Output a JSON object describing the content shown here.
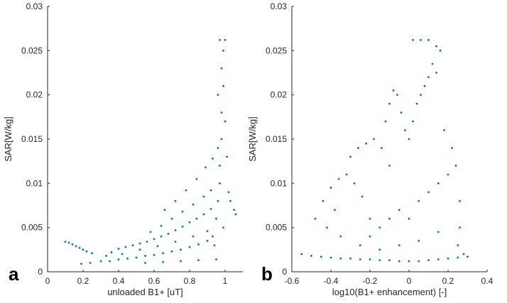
{
  "chart_data": [
    {
      "type": "scatter",
      "panel_letter": "a",
      "xlabel": "unloaded B1+ [uT]",
      "ylabel": "SAR[W/kg]",
      "xlim": [
        0,
        1.1
      ],
      "ylim": [
        0,
        0.03
      ],
      "xticks": [
        0,
        0.2,
        0.4,
        0.6,
        0.8,
        1
      ],
      "xtick_labels": [
        "0",
        "0.2",
        "0.4",
        "0.6",
        "0.8",
        "1"
      ],
      "yticks": [
        0,
        0.005,
        0.01,
        0.015,
        0.02,
        0.025,
        0.03
      ],
      "ytick_labels": [
        "0",
        "0.005",
        "0.01",
        "0.015",
        "0.02",
        "0.025",
        "0.03"
      ],
      "marker_color": "#0072BD",
      "grid": false,
      "points": [
        [
          0.1,
          0.0034
        ],
        [
          0.12,
          0.0033
        ],
        [
          0.14,
          0.0031
        ],
        [
          0.16,
          0.0029
        ],
        [
          0.18,
          0.0027
        ],
        [
          0.2,
          0.0025
        ],
        [
          0.22,
          0.0023
        ],
        [
          0.25,
          0.0021
        ],
        [
          0.19,
          0.0009
        ],
        [
          0.24,
          0.001
        ],
        [
          0.3,
          0.0012
        ],
        [
          0.33,
          0.0018
        ],
        [
          0.36,
          0.0022
        ],
        [
          0.4,
          0.0026
        ],
        [
          0.44,
          0.0028
        ],
        [
          0.48,
          0.003
        ],
        [
          0.52,
          0.0032
        ],
        [
          0.56,
          0.0034
        ],
        [
          0.6,
          0.0037
        ],
        [
          0.64,
          0.004
        ],
        [
          0.68,
          0.0043
        ],
        [
          0.72,
          0.0047
        ],
        [
          0.76,
          0.0051
        ],
        [
          0.8,
          0.0056
        ],
        [
          0.84,
          0.006
        ],
        [
          0.88,
          0.0065
        ],
        [
          0.92,
          0.0071
        ],
        [
          0.35,
          0.0012
        ],
        [
          0.4,
          0.0014
        ],
        [
          0.45,
          0.0015
        ],
        [
          0.5,
          0.0016
        ],
        [
          0.55,
          0.0018
        ],
        [
          0.6,
          0.0019
        ],
        [
          0.65,
          0.0021
        ],
        [
          0.7,
          0.0023
        ],
        [
          0.75,
          0.0025
        ],
        [
          0.8,
          0.0028
        ],
        [
          0.85,
          0.0031
        ],
        [
          0.9,
          0.0035
        ],
        [
          0.42,
          0.002
        ],
        [
          0.52,
          0.0025
        ],
        [
          0.62,
          0.0029
        ],
        [
          0.72,
          0.0034
        ],
        [
          0.82,
          0.004
        ],
        [
          0.9,
          0.0046
        ],
        [
          0.58,
          0.0045
        ],
        [
          0.64,
          0.0052
        ],
        [
          0.7,
          0.006
        ],
        [
          0.76,
          0.0068
        ],
        [
          0.82,
          0.0076
        ],
        [
          0.88,
          0.0085
        ],
        [
          0.92,
          0.0092
        ],
        [
          0.66,
          0.007
        ],
        [
          0.72,
          0.008
        ],
        [
          0.78,
          0.0092
        ],
        [
          0.84,
          0.0105
        ],
        [
          0.89,
          0.0118
        ],
        [
          0.93,
          0.0128
        ],
        [
          0.96,
          0.014
        ],
        [
          0.55,
          0.001
        ],
        [
          0.65,
          0.0011
        ],
        [
          0.75,
          0.0012
        ],
        [
          0.85,
          0.0013
        ],
        [
          0.95,
          0.0014
        ],
        [
          0.93,
          0.004
        ],
        [
          0.95,
          0.006
        ],
        [
          0.96,
          0.008
        ],
        [
          0.97,
          0.01
        ],
        [
          0.97,
          0.012
        ],
        [
          0.98,
          0.015
        ],
        [
          0.98,
          0.018
        ],
        [
          0.99,
          0.021
        ],
        [
          0.98,
          0.023
        ],
        [
          0.99,
          0.025
        ],
        [
          1.0,
          0.0262
        ],
        [
          0.97,
          0.0262
        ],
        [
          0.96,
          0.02
        ],
        [
          1.0,
          0.017
        ],
        [
          1.01,
          0.013
        ],
        [
          1.02,
          0.009
        ],
        [
          1.03,
          0.008
        ],
        [
          1.05,
          0.007
        ],
        [
          1.06,
          0.0065
        ],
        [
          0.99,
          0.005
        ],
        [
          0.94,
          0.003
        ]
      ]
    },
    {
      "type": "scatter",
      "panel_letter": "b",
      "xlabel": "log10(B1+ enhancement) [-]",
      "ylabel": "SAR[W/kg]",
      "xlim": [
        -0.6,
        0.4
      ],
      "ylim": [
        0,
        0.03
      ],
      "xticks": [
        -0.6,
        -0.4,
        -0.2,
        0,
        0.2,
        0.4
      ],
      "xtick_labels": [
        "-0.6",
        "-0.4",
        "-0.2",
        "0",
        "0.2",
        "0.4"
      ],
      "yticks": [
        0,
        0.005,
        0.01,
        0.015,
        0.02,
        0.025,
        0.03
      ],
      "ytick_labels": [
        "0",
        "0.005",
        "0.01",
        "0.015",
        "0.02",
        "0.025",
        "0.03"
      ],
      "marker_color": "#0072BD",
      "grid": false,
      "points": [
        [
          -0.55,
          0.002
        ],
        [
          -0.5,
          0.0018
        ],
        [
          -0.45,
          0.0017
        ],
        [
          -0.4,
          0.0016
        ],
        [
          -0.35,
          0.0015
        ],
        [
          -0.3,
          0.0015
        ],
        [
          -0.25,
          0.0014
        ],
        [
          -0.2,
          0.0014
        ],
        [
          -0.15,
          0.0013
        ],
        [
          -0.1,
          0.0013
        ],
        [
          -0.05,
          0.0012
        ],
        [
          0.0,
          0.0012
        ],
        [
          0.05,
          0.0012
        ],
        [
          0.1,
          0.0013
        ],
        [
          0.15,
          0.0014
        ],
        [
          0.2,
          0.0015
        ],
        [
          0.25,
          0.0016
        ],
        [
          0.3,
          0.0017
        ],
        [
          -0.48,
          0.006
        ],
        [
          -0.44,
          0.008
        ],
        [
          -0.4,
          0.0095
        ],
        [
          -0.36,
          0.0105
        ],
        [
          -0.32,
          0.011
        ],
        [
          -0.28,
          0.01
        ],
        [
          -0.24,
          0.0085
        ],
        [
          -0.2,
          0.006
        ],
        [
          -0.3,
          0.013
        ],
        [
          -0.26,
          0.014
        ],
        [
          -0.22,
          0.0145
        ],
        [
          -0.18,
          0.015
        ],
        [
          -0.14,
          0.014
        ],
        [
          -0.1,
          0.012
        ],
        [
          -0.12,
          0.017
        ],
        [
          -0.1,
          0.019
        ],
        [
          -0.08,
          0.0205
        ],
        [
          -0.06,
          0.02
        ],
        [
          -0.04,
          0.018
        ],
        [
          -0.02,
          0.016
        ],
        [
          0.0,
          0.015
        ],
        [
          0.02,
          0.017
        ],
        [
          0.04,
          0.019
        ],
        [
          0.06,
          0.02
        ],
        [
          0.08,
          0.021
        ],
        [
          0.1,
          0.022
        ],
        [
          0.12,
          0.0235
        ],
        [
          0.14,
          0.0225
        ],
        [
          0.02,
          0.0262
        ],
        [
          0.06,
          0.0262
        ],
        [
          0.1,
          0.0262
        ],
        [
          0.14,
          0.0255
        ],
        [
          0.16,
          0.025
        ],
        [
          -0.2,
          0.004
        ],
        [
          -0.15,
          0.005
        ],
        [
          -0.1,
          0.006
        ],
        [
          -0.05,
          0.007
        ],
        [
          0.0,
          0.006
        ],
        [
          0.05,
          0.008
        ],
        [
          0.1,
          0.009
        ],
        [
          0.15,
          0.01
        ],
        [
          0.2,
          0.011
        ],
        [
          0.24,
          0.012
        ],
        [
          0.26,
          0.008
        ],
        [
          0.26,
          0.005
        ],
        [
          0.22,
          0.014
        ],
        [
          0.18,
          0.016
        ],
        [
          -0.35,
          0.004
        ],
        [
          -0.25,
          0.003
        ],
        [
          -0.15,
          0.0025
        ],
        [
          -0.05,
          0.003
        ],
        [
          0.05,
          0.0035
        ],
        [
          0.15,
          0.0045
        ],
        [
          0.25,
          0.003
        ],
        [
          0.28,
          0.002
        ],
        [
          -0.42,
          0.005
        ],
        [
          -0.38,
          0.007
        ]
      ]
    }
  ]
}
